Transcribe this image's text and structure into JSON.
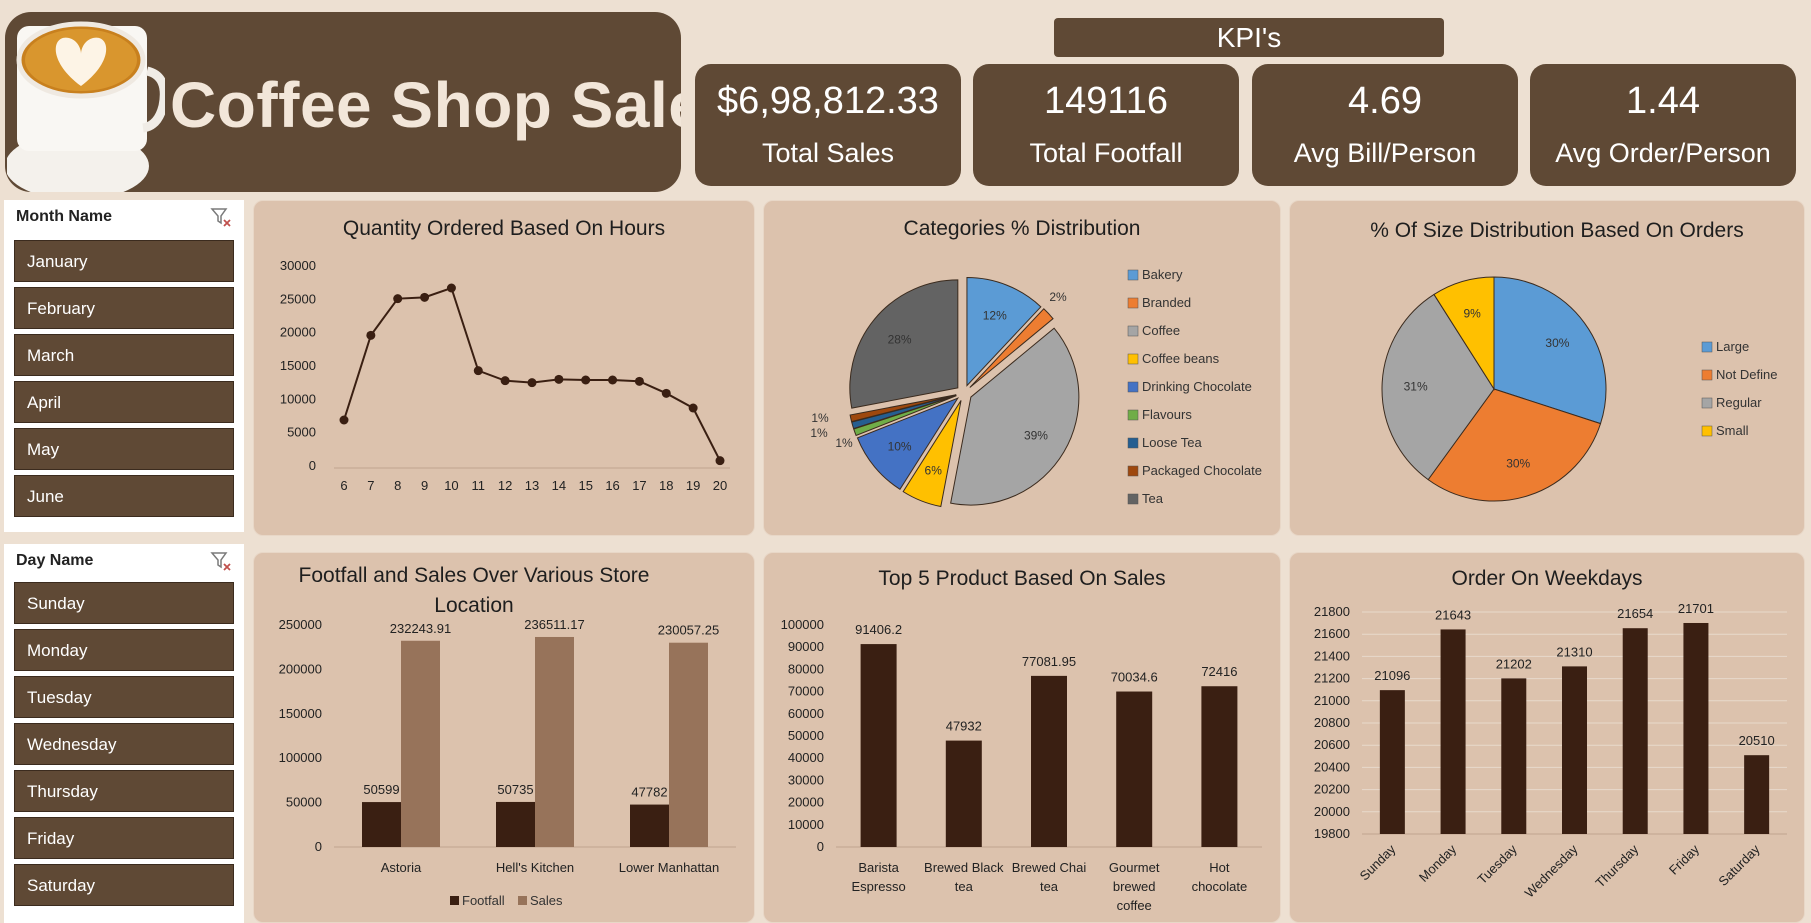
{
  "header": {
    "title": "Coffee Shop Sales"
  },
  "kpi_header": "KPI's",
  "kpis": [
    {
      "value": "$6,98,812.33",
      "label": "Total Sales"
    },
    {
      "value": "149116",
      "label": "Total Footfall"
    },
    {
      "value": "4.69",
      "label": "Avg Bill/Person"
    },
    {
      "value": "1.44",
      "label": "Avg Order/Person"
    }
  ],
  "month_slicer": {
    "title": "Month Name",
    "items": [
      "January",
      "February",
      "March",
      "April",
      "May",
      "June"
    ]
  },
  "day_slicer": {
    "title": "Day Name",
    "items": [
      "Sunday",
      "Monday",
      "Tuesday",
      "Wednesday",
      "Thursday",
      "Friday",
      "Saturday"
    ]
  },
  "colors": {
    "brown": "#5f4935",
    "panel": "#dcc2ad",
    "dark_bar": "#3a1f12",
    "light_bar": "#97735a",
    "background": "#ede0d2"
  },
  "chart_data": [
    {
      "type": "line",
      "title": "Quantity Ordered Based On Hours",
      "x": [
        6,
        7,
        8,
        9,
        10,
        11,
        12,
        13,
        14,
        15,
        16,
        17,
        18,
        19,
        20
      ],
      "series": [
        {
          "values": [
            6900,
            19600,
            25100,
            25300,
            26700,
            14300,
            12800,
            12500,
            13000,
            12900,
            12900,
            12700,
            10900,
            8700,
            800
          ]
        }
      ],
      "yticks": [
        0,
        5000,
        10000,
        15000,
        20000,
        25000,
        30000
      ],
      "ylim": [
        0,
        30000
      ],
      "grid": false
    },
    {
      "type": "pie",
      "title": "Categories % Distribution",
      "categories": [
        "Bakery",
        "Branded",
        "Coffee",
        "Coffee beans",
        "Drinking Chocolate",
        "Flavours",
        "Loose Tea",
        "Packaged Chocolate",
        "Tea"
      ],
      "values": [
        12,
        2,
        39,
        6,
        10,
        1,
        1,
        1,
        28
      ],
      "labels": [
        "12%",
        "2%",
        "39%",
        "6%",
        "10%",
        "1%",
        "1%",
        "1%",
        "28%"
      ],
      "colors": [
        "#5b9bd5",
        "#ed7d31",
        "#a5a5a5",
        "#ffc000",
        "#4472c4",
        "#70ad47",
        "#255e91",
        "#9e480e",
        "#636363"
      ],
      "legend": "right"
    },
    {
      "type": "pie",
      "title": "% Of Size Distribution Based On Orders",
      "categories": [
        "Large",
        "Not Define",
        "Regular",
        "Small"
      ],
      "values": [
        30,
        30,
        31,
        9
      ],
      "labels": [
        "30%",
        "30%",
        "31%",
        "9%"
      ],
      "colors": [
        "#5b9bd5",
        "#ed7d31",
        "#a5a5a5",
        "#ffc000"
      ],
      "legend": "right"
    },
    {
      "type": "bar",
      "title": "Footfall and Sales Over Various Store Location",
      "categories": [
        "Astoria",
        "Hell's Kitchen",
        "Lower Manhattan"
      ],
      "series": [
        {
          "name": "Footfall",
          "values": [
            50599,
            50735,
            47782
          ],
          "labels": [
            "50599",
            "50735",
            "47782"
          ]
        },
        {
          "name": "Sales",
          "values": [
            232243.91,
            236511.17,
            230057.25
          ],
          "labels": [
            "232243.91",
            "236511.17",
            "230057.25"
          ]
        }
      ],
      "yticks": [
        0,
        50000,
        100000,
        150000,
        200000,
        250000
      ],
      "ylim": [
        0,
        250000
      ],
      "legend": "bottom",
      "grid": false
    },
    {
      "type": "bar",
      "title": "Top 5 Product Based On Sales",
      "categories": [
        [
          "Barista",
          "Espresso"
        ],
        [
          "Brewed Black",
          "tea"
        ],
        [
          "Brewed Chai",
          "tea"
        ],
        [
          "Gourmet",
          "brewed",
          "coffee"
        ],
        [
          "Hot",
          "chocolate"
        ]
      ],
      "values": [
        91406.2,
        47932,
        77081.95,
        70034.6,
        72416
      ],
      "labels": [
        "91406.2",
        "47932",
        "77081.95",
        "70034.6",
        "72416"
      ],
      "yticks": [
        0,
        10000,
        20000,
        30000,
        40000,
        50000,
        60000,
        70000,
        80000,
        90000,
        100000
      ],
      "ylim": [
        0,
        100000
      ],
      "grid": false
    },
    {
      "type": "bar",
      "title": "Order On Weekdays",
      "categories": [
        "Sunday",
        "Monday",
        "Tuesday",
        "Wednesday",
        "Thursday",
        "Friday",
        "Saturday"
      ],
      "values": [
        21096,
        21643,
        21202,
        21310,
        21654,
        21701,
        20510
      ],
      "labels": [
        "21096",
        "21643",
        "21202",
        "21310",
        "21654",
        "21701",
        "20510"
      ],
      "yticks": [
        19800,
        20000,
        20200,
        20400,
        20600,
        20800,
        21000,
        21200,
        21400,
        21600,
        21800
      ],
      "ylim": [
        19800,
        21800
      ],
      "grid": true
    }
  ]
}
